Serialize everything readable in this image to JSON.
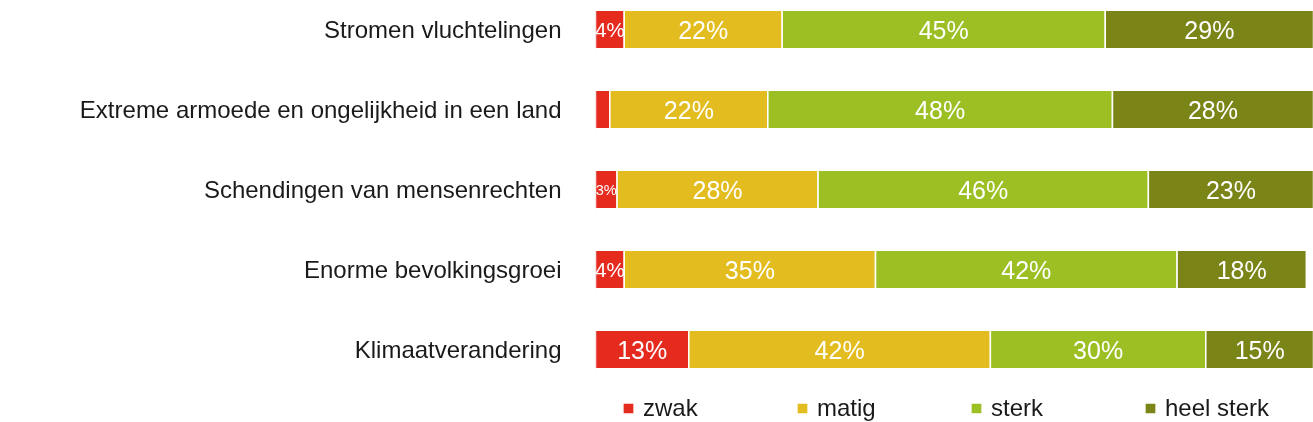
{
  "chart_data": {
    "type": "bar",
    "orientation": "horizontal",
    "stacked": true,
    "categories": [
      "Stromen vluchtelingen",
      "Extreme armoede en ongelijkheid in een land",
      "Schendingen van mensenrechten",
      "Enorme bevolkingsgroei",
      "Klimaatverandering"
    ],
    "series": [
      {
        "name": "zwak",
        "color": "#e52a1e",
        "values": [
          4,
          2,
          3,
          4,
          13
        ],
        "value_labels": [
          "4%",
          null,
          "3%",
          "4%",
          "13%"
        ]
      },
      {
        "name": "matig",
        "color": "#e3bd1f",
        "values": [
          22,
          22,
          28,
          35,
          42
        ],
        "value_labels": [
          "22%",
          "22%",
          "28%",
          "35%",
          "42%"
        ]
      },
      {
        "name": "sterk",
        "color": "#9cc023",
        "values": [
          45,
          48,
          46,
          42,
          30
        ],
        "value_labels": [
          "45%",
          "48%",
          "46%",
          "42%",
          "30%"
        ]
      },
      {
        "name": "heel sterk",
        "color": "#7a8417",
        "values": [
          29,
          28,
          23,
          18,
          15
        ],
        "value_labels": [
          "29%",
          "28%",
          "23%",
          "18%",
          "15%"
        ]
      }
    ],
    "xlim": [
      0,
      100
    ],
    "tick_labels": "y",
    "legend": "bottom"
  }
}
